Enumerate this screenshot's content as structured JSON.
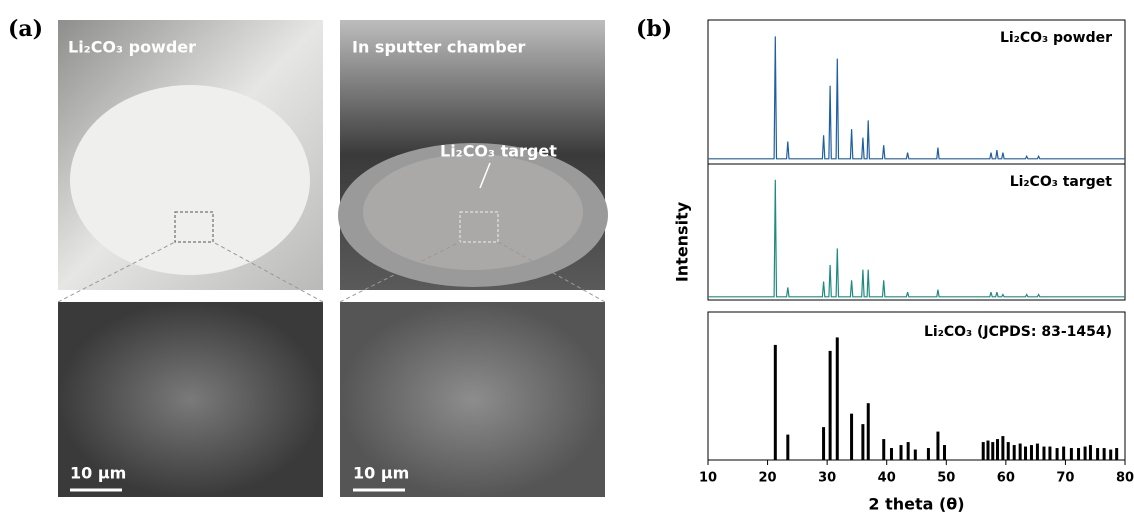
{
  "figure": {
    "panel_a": "(a)",
    "panel_b": "(b)",
    "photos": {
      "powder": "Li₂CO₃ powder",
      "chamber": "In sputter chamber",
      "target": "Li₂CO₃ target"
    },
    "scale_bars": [
      "10 μm",
      "10 μm"
    ]
  },
  "chart_data": [
    {
      "type": "line",
      "name": "Li₂CO₃ powder",
      "color": "#1f5f9f",
      "xlim": [
        10,
        80
      ],
      "ylim": [
        0,
        110
      ],
      "x": [
        10,
        21.1,
        21.3,
        21.5,
        23.2,
        23.4,
        23.6,
        29.2,
        29.4,
        29.6,
        30.3,
        30.5,
        30.7,
        31.5,
        31.7,
        31.9,
        33.9,
        34.1,
        34.3,
        35.8,
        36.0,
        36.2,
        36.7,
        36.9,
        37.1,
        39.3,
        39.5,
        39.7,
        43.3,
        43.5,
        43.7,
        48.4,
        48.6,
        48.8,
        57.3,
        57.5,
        57.7,
        58.3,
        58.5,
        58.7,
        59.3,
        59.5,
        59.7,
        63.3,
        63.5,
        63.7,
        65.3,
        65.5,
        65.7,
        80
      ],
      "values": [
        1,
        1,
        100,
        1,
        1,
        15,
        1,
        1,
        20,
        1,
        1,
        60,
        1,
        1,
        82,
        1,
        1,
        25,
        1,
        1,
        18,
        1,
        1,
        32,
        1,
        1,
        12,
        1,
        1,
        6,
        1,
        1,
        10,
        1,
        1,
        6,
        1,
        1,
        8,
        1,
        1,
        6,
        1,
        1,
        3,
        1,
        1,
        3,
        1,
        1
      ]
    },
    {
      "type": "line",
      "name": "Li₂CO₃ target",
      "color": "#1f8a80",
      "xlim": [
        10,
        80
      ],
      "ylim": [
        0,
        110
      ],
      "ylabel": "Intensity",
      "x": [
        10,
        21.1,
        21.3,
        21.5,
        23.2,
        23.4,
        23.6,
        29.2,
        29.4,
        29.6,
        30.3,
        30.5,
        30.7,
        31.5,
        31.7,
        31.9,
        33.9,
        34.1,
        34.3,
        35.8,
        36.0,
        36.2,
        36.7,
        36.9,
        37.1,
        39.3,
        39.5,
        39.7,
        43.3,
        43.5,
        43.7,
        48.4,
        48.6,
        48.8,
        57.3,
        57.5,
        57.7,
        58.3,
        58.5,
        58.7,
        59.3,
        59.5,
        59.7,
        63.3,
        63.5,
        63.7,
        65.3,
        65.5,
        65.7,
        80
      ],
      "values": [
        1,
        1,
        100,
        1,
        1,
        9,
        1,
        1,
        14,
        1,
        1,
        28,
        1,
        1,
        42,
        1,
        1,
        15,
        1,
        1,
        24,
        1,
        1,
        24,
        1,
        1,
        15,
        1,
        1,
        5,
        1,
        1,
        7,
        1,
        1,
        5,
        1,
        1,
        5,
        1,
        1,
        3,
        1,
        1,
        3,
        1,
        1,
        3,
        1,
        1
      ]
    },
    {
      "type": "bar",
      "name": "Li₂CO₃ (JCPDS: 83-1454)",
      "color": "#000000",
      "xlim": [
        10,
        80
      ],
      "ylim": [
        0,
        95
      ],
      "xlabel": "2 theta (θ)",
      "xticks": [
        10,
        20,
        30,
        40,
        50,
        60,
        70,
        80
      ],
      "x": [
        21.3,
        23.4,
        29.4,
        30.5,
        31.7,
        34.1,
        36.0,
        36.9,
        39.5,
        40.8,
        42.4,
        43.6,
        44.8,
        47.0,
        48.6,
        49.7,
        56.2,
        57.0,
        57.8,
        58.6,
        59.5,
        60.4,
        61.4,
        62.4,
        63.3,
        64.3,
        65.3,
        66.4,
        67.4,
        68.6,
        69.7,
        71.0,
        72.2,
        73.3,
        74.2,
        75.4,
        76.5,
        77.6,
        78.6
      ],
      "values": [
        77,
        17,
        22,
        73,
        82,
        31,
        24,
        38,
        14,
        8,
        10,
        12,
        7,
        8,
        19,
        10,
        12,
        13,
        12,
        14,
        16,
        12,
        10,
        11,
        9,
        10,
        11,
        9,
        9,
        8,
        9,
        8,
        8,
        9,
        10,
        8,
        8,
        7,
        8
      ]
    }
  ]
}
